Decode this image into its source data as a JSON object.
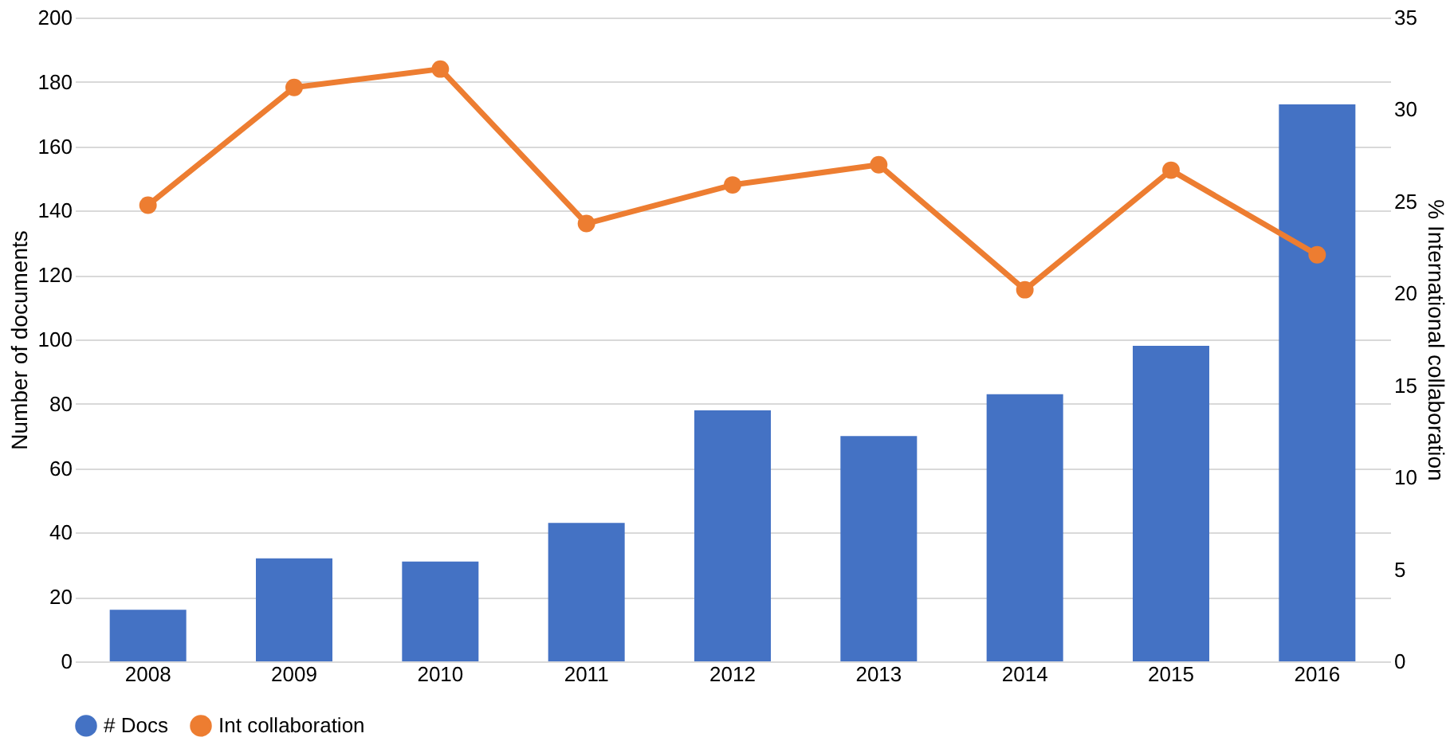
{
  "chart_data": {
    "type": "bar",
    "categories": [
      "2008",
      "2009",
      "2010",
      "2011",
      "2012",
      "2013",
      "2014",
      "2015",
      "2016"
    ],
    "series": [
      {
        "name": "# Docs",
        "color": "#4472c4",
        "values": [
          16,
          32,
          31,
          43,
          78,
          70,
          83,
          98,
          173
        ]
      },
      {
        "name": "Int collaboration",
        "type": "line",
        "axis": "y2",
        "color": "#ed7d31",
        "marker": "circle",
        "values": [
          24.8,
          31.2,
          32.2,
          23.8,
          25.9,
          27.0,
          20.2,
          26.7,
          22.1
        ]
      }
    ],
    "ylabel": "Number of documents",
    "y2label": "% International collaboration",
    "ylim": [
      0,
      200
    ],
    "yticks": [
      0,
      20,
      40,
      60,
      80,
      100,
      120,
      140,
      160,
      180,
      200
    ],
    "y2lim": [
      0,
      35
    ],
    "y2ticks": [
      0,
      5,
      10,
      15,
      20,
      25,
      30,
      35
    ],
    "grid": "y",
    "legend": "bottom"
  }
}
